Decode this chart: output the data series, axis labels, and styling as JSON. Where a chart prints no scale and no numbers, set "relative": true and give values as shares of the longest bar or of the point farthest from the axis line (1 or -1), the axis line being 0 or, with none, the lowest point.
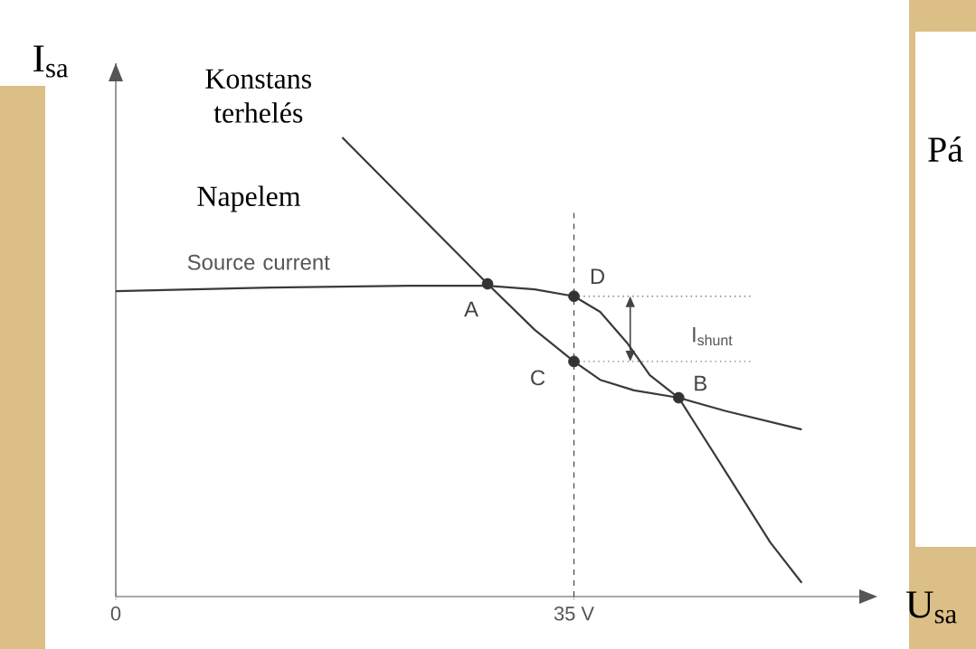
{
  "chart_data": {
    "type": "line",
    "relative": true,
    "xlabel": "U$_{sa}$",
    "ylabel": "I$_{sa}$",
    "xlim": [
      0,
      56.8
    ],
    "xticks": [
      0,
      {
        "value": 35,
        "label": "35 V"
      }
    ],
    "series": [
      {
        "name": "Konstans terhelés",
        "color": "#3a3a3a",
        "marker": "none",
        "x": [
          17.3,
          28.4,
          32.0,
          35.0,
          37.0,
          39.6,
          43.0,
          46.6,
          52.4
        ],
        "values": [
          1.0,
          0.681,
          0.581,
          0.512,
          0.472,
          0.449,
          0.433,
          0.404,
          0.364
        ]
      },
      {
        "name": "Source current",
        "color": "#3a3a3a",
        "marker": "none",
        "x": [
          0,
          11.9,
          22.3,
          28.4,
          32.0,
          35.0,
          37.0,
          39.1,
          40.8,
          43.0,
          46.5,
          50.0,
          52.4
        ],
        "values": [
          0.665,
          0.673,
          0.677,
          0.677,
          0.669,
          0.654,
          0.62,
          0.551,
          0.482,
          0.433,
          0.276,
          0.118,
          0.03
        ]
      },
      {
        "type": "scatter",
        "color": "#333333",
        "marker": "circle",
        "x": [
          28.4,
          43.0,
          35.0,
          35.0
        ],
        "values": [
          0.681,
          0.433,
          0.512,
          0.654
        ]
      }
    ],
    "ref_lines": [
      {
        "axis": "x",
        "value": 35,
        "line_style": "dashed",
        "color": "#444444"
      },
      {
        "axis": "y",
        "value": 0.654,
        "line_style": "dotted",
        "color": "#777777"
      },
      {
        "axis": "y",
        "value": 0.512,
        "line_style": "dotted",
        "color": "#777777"
      }
    ],
    "annotations": [
      "Napelem",
      "Pá",
      "I$_{shunt}$",
      {
        "text": "A",
        "x": 28.4,
        "y": 0.681
      },
      {
        "text": "B",
        "x": 43.0,
        "y": 0.433
      },
      {
        "text": "C",
        "x": 35.0,
        "y": 0.512
      },
      {
        "text": "D",
        "x": 35.0,
        "y": 0.654
      }
    ]
  }
}
